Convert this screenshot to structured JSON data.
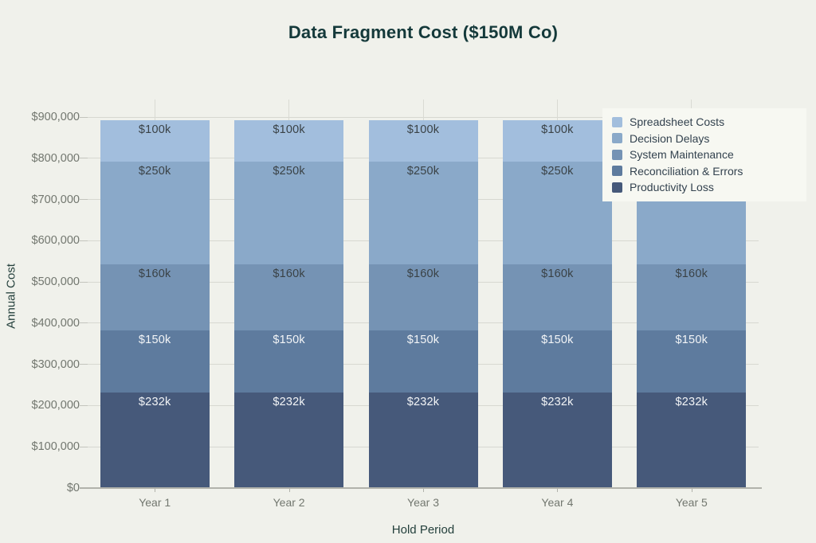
{
  "title": "Data Fragment Cost ($150M Co)",
  "chart_data": {
    "type": "bar",
    "stacked": true,
    "title": "Data Fragment Cost ($150M Co)",
    "xlabel": "Hold Period",
    "ylabel": "Annual Cost",
    "categories": [
      "Year 1",
      "Year 2",
      "Year 3",
      "Year 4",
      "Year 5"
    ],
    "series": [
      {
        "name": "Productivity Loss",
        "color": "#46597a",
        "values": [
          232000,
          232000,
          232000,
          232000,
          232000
        ],
        "bar_label": "$232k",
        "label_color": "#f3f5f7"
      },
      {
        "name": "Reconciliation & Errors",
        "color": "#5e7b9e",
        "values": [
          150000,
          150000,
          150000,
          150000,
          150000
        ],
        "bar_label": "$150k",
        "label_color": "#f3f5f7"
      },
      {
        "name": "System Maintenance",
        "color": "#7593b4",
        "values": [
          160000,
          160000,
          160000,
          160000,
          160000
        ],
        "bar_label": "$160k",
        "label_color": "#3a4246"
      },
      {
        "name": "Decision Delays",
        "color": "#8aa9c9",
        "values": [
          250000,
          250000,
          250000,
          250000,
          250000
        ],
        "bar_label": "$250k",
        "label_color": "#3a4246"
      },
      {
        "name": "Spreadsheet Costs",
        "color": "#a2bedd",
        "values": [
          100000,
          100000,
          100000,
          100000,
          100000
        ],
        "bar_label": "$100k",
        "label_color": "#3a4246"
      }
    ],
    "legend": {
      "position": "top-right",
      "order": [
        "Spreadsheet Costs",
        "Decision Delays",
        "System Maintenance",
        "Reconciliation & Errors",
        "Productivity Loss"
      ]
    },
    "y_ticks": [
      "$0",
      "$100,000",
      "$200,000",
      "$300,000",
      "$400,000",
      "$500,000",
      "$600,000",
      "$700,000",
      "$800,000",
      "$900,000"
    ],
    "ylim": [
      0,
      942500
    ],
    "grid": true,
    "bar_total": 892000
  },
  "colors": {
    "background": "#f0f1eb",
    "title": "#14393a",
    "axis_title": "#24403c",
    "tick_label": "#72776f",
    "gridline": "#d7d8d1",
    "axis_line": "#b1b2ab",
    "legend_background": "#f7f8f2",
    "legend_text": "#33424f"
  }
}
